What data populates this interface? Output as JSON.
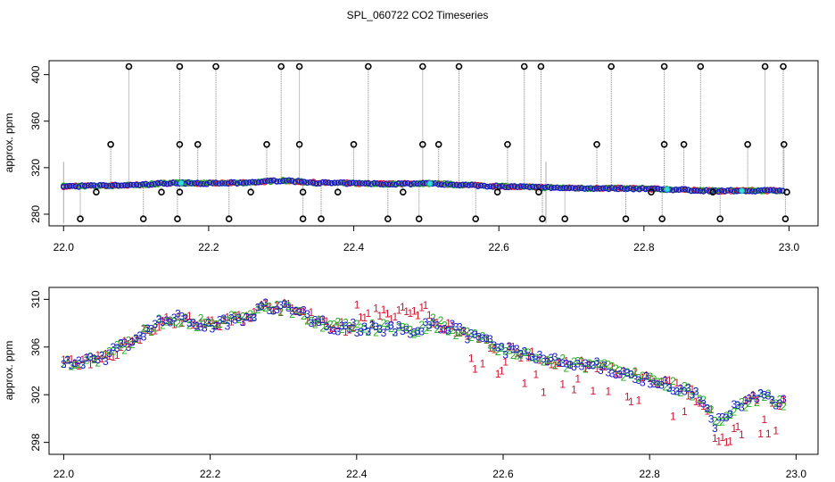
{
  "chart_data": {
    "title": "SPL_060722  CO2 Timeseries",
    "panels": [
      {
        "id": "top",
        "type": "scatter",
        "ylabel": "approx. ppm",
        "xlim": [
          21.98,
          23.04
        ],
        "ylim": [
          270,
          412
        ],
        "xticks": [
          "22.0",
          "22.2",
          "22.4",
          "22.6",
          "22.8",
          "23.0"
        ],
        "xtick_values": [
          22.0,
          22.2,
          22.4,
          22.6,
          22.8,
          23.0
        ],
        "yticks": [
          "280",
          "320",
          "360",
          "400"
        ],
        "ytick_values": [
          280,
          320,
          360,
          400
        ],
        "baseline": [
          [
            22.0,
            304
          ],
          [
            22.1,
            305
          ],
          [
            22.15,
            307
          ],
          [
            22.2,
            306.5
          ],
          [
            22.25,
            307
          ],
          [
            22.3,
            309
          ],
          [
            22.35,
            307
          ],
          [
            22.4,
            306.5
          ],
          [
            22.45,
            306
          ],
          [
            22.5,
            306.5
          ],
          [
            22.6,
            304
          ],
          [
            22.7,
            302.5
          ],
          [
            22.8,
            302
          ],
          [
            22.85,
            301
          ],
          [
            22.9,
            300
          ],
          [
            23.0,
            300.5
          ]
        ],
        "spikes_high": [
          22.09,
          22.16,
          22.21,
          22.3,
          22.325,
          22.42,
          22.495,
          22.545,
          22.635,
          22.658,
          22.755,
          22.828,
          22.878,
          22.967,
          22.992
        ],
        "spikes_mid": [
          22.065,
          22.16,
          22.185,
          22.28,
          22.325,
          22.4,
          22.495,
          22.517,
          22.612,
          22.735,
          22.828,
          22.855,
          22.943,
          22.993
        ],
        "spikes_low": [
          22.023,
          22.11,
          22.157,
          22.228,
          22.33,
          22.355,
          22.447,
          22.49,
          22.568,
          22.66,
          22.691,
          22.775,
          22.825,
          22.905,
          22.995
        ],
        "dips_small": [
          22.045,
          22.135,
          22.16,
          22.258,
          22.33,
          22.378,
          22.468,
          22.598,
          22.655,
          22.81,
          22.895,
          22.997
        ],
        "high_value": 407,
        "mid_value": 340,
        "low_value": 276,
        "small_value": 299
      },
      {
        "id": "bottom",
        "type": "scatter",
        "ylabel": "approx. ppm",
        "xlim": [
          21.98,
          23.03
        ],
        "ylim": [
          297,
          311
        ],
        "xticks": [
          "22.0",
          "22.2",
          "22.4",
          "22.6",
          "22.8",
          "23.0"
        ],
        "xtick_values": [
          22.0,
          22.2,
          22.4,
          22.6,
          22.8,
          23.0
        ],
        "yticks": [
          "298",
          "302",
          "306",
          "310"
        ],
        "ytick_values": [
          298,
          302,
          306,
          310
        ],
        "series": [
          {
            "name": "1",
            "color": "#d2122e"
          },
          {
            "name": "2",
            "color": "#1faa1f"
          },
          {
            "name": "3",
            "color": "#1414d2"
          }
        ],
        "trend": [
          [
            22.0,
            304.8
          ],
          [
            22.02,
            304.5
          ],
          [
            22.05,
            305.0
          ],
          [
            22.08,
            306.0
          ],
          [
            22.11,
            307.3
          ],
          [
            22.14,
            308.3
          ],
          [
            22.16,
            308.4
          ],
          [
            22.2,
            307.8
          ],
          [
            22.25,
            308.6
          ],
          [
            22.28,
            309.5
          ],
          [
            22.31,
            309.2
          ],
          [
            22.33,
            308.7
          ],
          [
            22.36,
            307.8
          ],
          [
            22.4,
            307.6
          ],
          [
            22.45,
            307.6
          ],
          [
            22.48,
            307.3
          ],
          [
            22.5,
            308.1
          ],
          [
            22.55,
            307.1
          ],
          [
            22.6,
            305.8
          ],
          [
            22.65,
            305.0
          ],
          [
            22.7,
            304.5
          ],
          [
            22.75,
            304.2
          ],
          [
            22.8,
            303.2
          ],
          [
            22.85,
            302.5
          ],
          [
            22.88,
            301.0
          ],
          [
            22.89,
            299.5
          ],
          [
            22.92,
            301.0
          ],
          [
            22.95,
            301.8
          ],
          [
            22.98,
            301.4
          ]
        ]
      }
    ]
  }
}
